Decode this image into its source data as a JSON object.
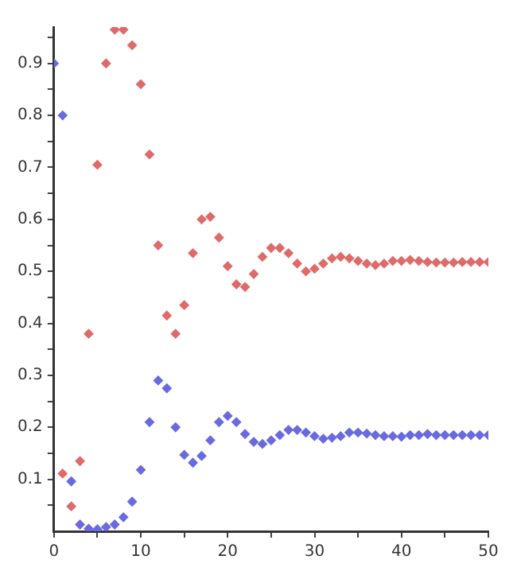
{
  "chart_data": {
    "type": "scatter",
    "marker": "diamond",
    "grid": false,
    "legend": false,
    "xlim": [
      0,
      50
    ],
    "xticks": [
      0,
      {
        "value": 5,
        "label": null
      },
      10,
      {
        "value": 15,
        "label": null
      },
      20,
      {
        "value": 25,
        "label": null
      },
      30,
      {
        "value": 35,
        "label": null
      },
      40,
      {
        "value": 45,
        "label": null
      },
      50
    ],
    "ylim": [
      0,
      0.97
    ],
    "yticks": [
      {
        "value": 0.05,
        "label": null
      },
      0.1,
      {
        "value": 0.15,
        "label": null
      },
      0.2,
      {
        "value": 0.25,
        "label": null
      },
      0.3,
      {
        "value": 0.35,
        "label": null
      },
      0.4,
      {
        "value": 0.45,
        "label": null
      },
      0.5,
      {
        "value": 0.55,
        "label": null
      },
      0.6,
      {
        "value": 0.65,
        "label": null
      },
      0.7,
      {
        "value": 0.75,
        "label": null
      },
      0.8,
      {
        "value": 0.85,
        "label": null
      },
      0.9,
      {
        "value": 0.95,
        "label": null
      }
    ],
    "series": [
      {
        "color": "#e06a6a",
        "x": [
          1,
          2,
          3,
          4,
          5,
          6,
          7,
          8,
          9,
          10,
          11,
          12,
          13,
          14,
          15,
          16,
          17,
          18,
          19,
          20,
          21,
          22,
          23,
          24,
          25,
          26,
          27,
          28,
          29,
          30,
          31,
          32,
          33,
          34,
          35,
          36,
          37,
          38,
          39,
          40,
          41,
          42,
          43,
          44,
          45,
          46,
          47,
          48,
          49,
          50
        ],
        "values": [
          0.111,
          0.048,
          0.135,
          0.38,
          0.705,
          0.9,
          0.965,
          0.965,
          0.935,
          0.86,
          0.725,
          0.55,
          0.415,
          0.38,
          0.435,
          0.535,
          0.6,
          0.605,
          0.565,
          0.51,
          0.475,
          0.47,
          0.495,
          0.528,
          0.545,
          0.545,
          0.535,
          0.515,
          0.5,
          0.505,
          0.515,
          0.525,
          0.528,
          0.525,
          0.52,
          0.515,
          0.512,
          0.515,
          0.52,
          0.52,
          0.522,
          0.52,
          0.518,
          0.517,
          0.517,
          0.517,
          0.518,
          0.518,
          0.518,
          0.518
        ]
      },
      {
        "color": "#6a6ae0",
        "x": [
          0,
          1,
          2,
          3,
          4,
          5,
          6,
          7,
          8,
          9,
          10,
          11,
          12,
          13,
          14,
          15,
          16,
          17,
          18,
          19,
          20,
          21,
          22,
          23,
          24,
          25,
          26,
          27,
          28,
          29,
          30,
          31,
          32,
          33,
          34,
          35,
          36,
          37,
          38,
          39,
          40,
          41,
          42,
          43,
          44,
          45,
          46,
          47,
          48,
          49,
          50
        ],
        "values": [
          0.9,
          0.8,
          0.096,
          0.013,
          0.005,
          0.004,
          0.008,
          0.013,
          0.027,
          0.057,
          0.118,
          0.21,
          0.29,
          0.275,
          0.2,
          0.147,
          0.132,
          0.145,
          0.175,
          0.21,
          0.222,
          0.21,
          0.187,
          0.172,
          0.168,
          0.175,
          0.185,
          0.195,
          0.195,
          0.19,
          0.183,
          0.178,
          0.18,
          0.183,
          0.19,
          0.19,
          0.188,
          0.185,
          0.183,
          0.183,
          0.182,
          0.185,
          0.185,
          0.187,
          0.185,
          0.185,
          0.185,
          0.185,
          0.185,
          0.185,
          0.185
        ]
      }
    ]
  }
}
